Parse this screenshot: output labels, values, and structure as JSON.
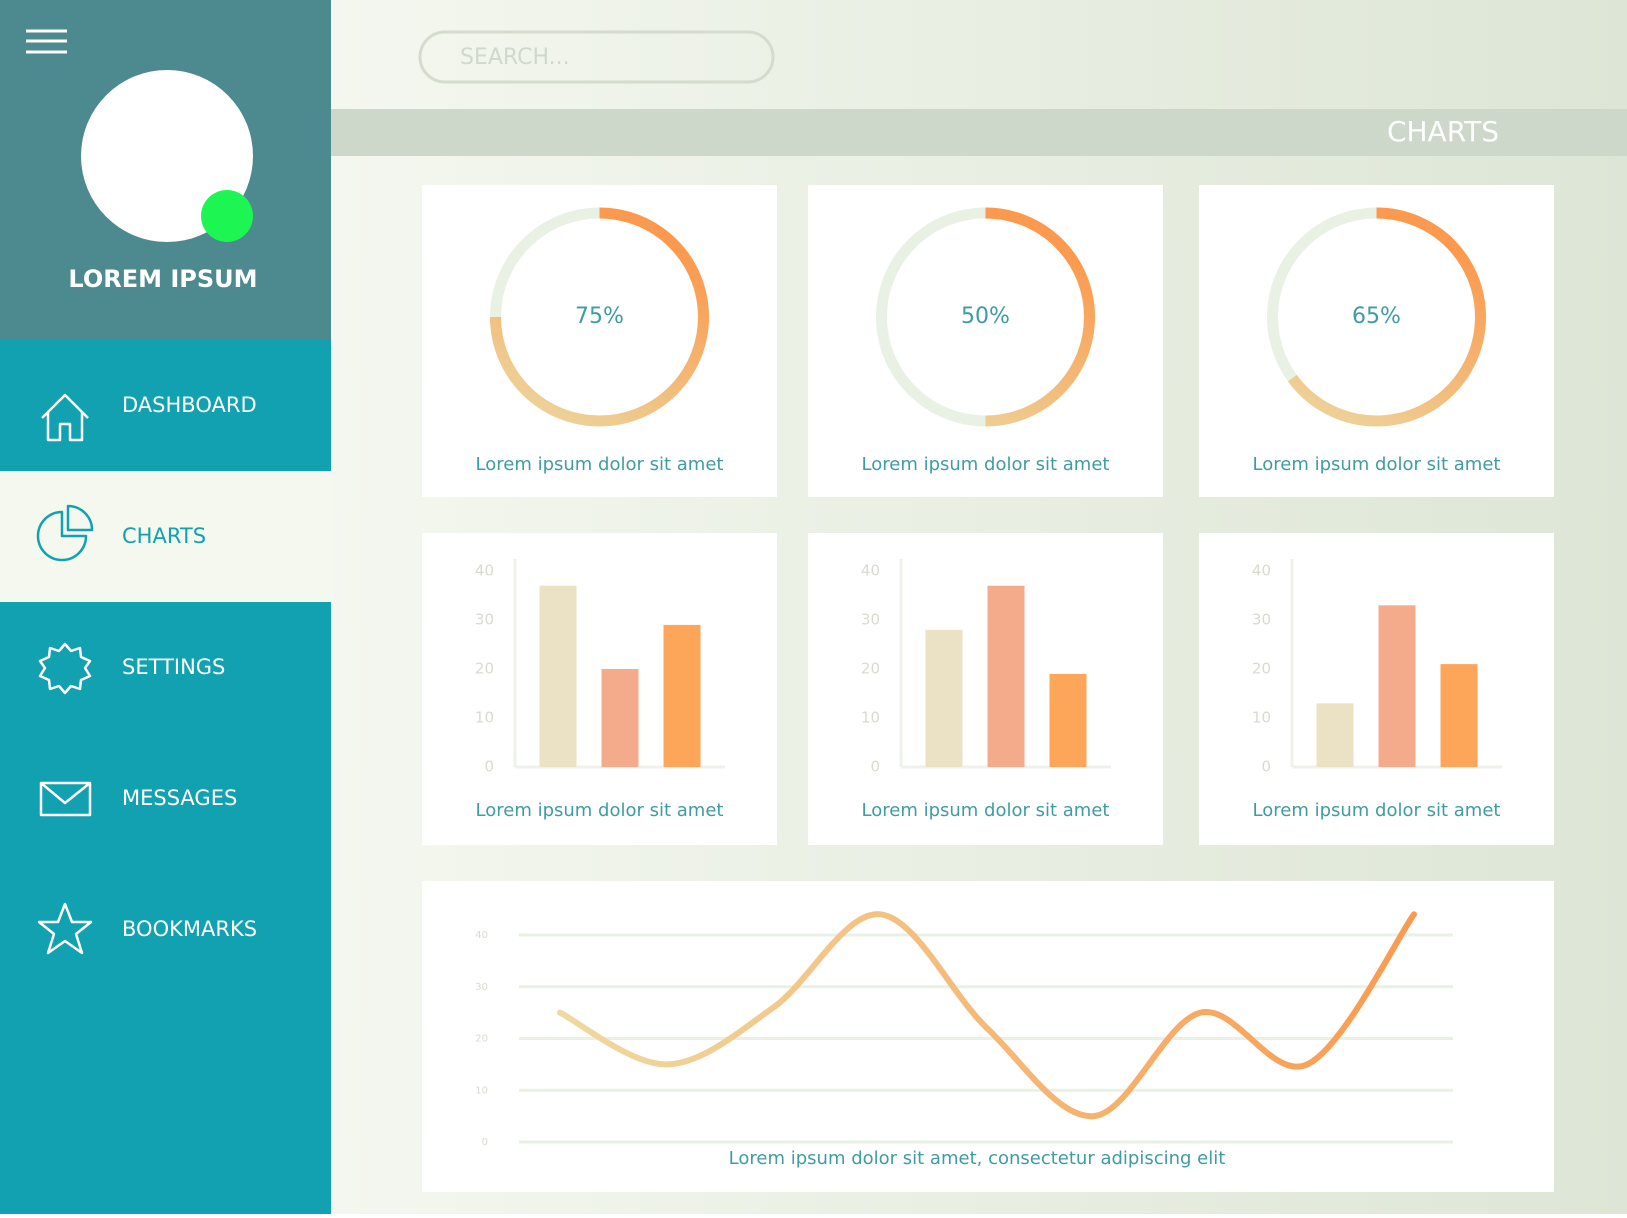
{
  "sidebar": {
    "profile_name": "LOREM IPSUM",
    "menu": [
      "DASHBOARD",
      "CHARTS",
      "SETTINGS",
      "MESSAGES",
      "BOOKMARKS"
    ],
    "active": 1
  },
  "search": {
    "placeholder": "SEARCH..."
  },
  "header": {
    "title": "CHARTS"
  },
  "chart_data": [
    {
      "type": "pie",
      "values": [
        75
      ],
      "value_labels": [
        "75%"
      ],
      "caption": "Lorem ipsum dolor sit amet",
      "color": "#fb9a4e"
    },
    {
      "type": "pie",
      "values": [
        50
      ],
      "value_labels": [
        "50%"
      ],
      "caption": "Lorem ipsum dolor sit amet",
      "color": "#fb9a4e"
    },
    {
      "type": "pie",
      "values": [
        65
      ],
      "value_labels": [
        "65%"
      ],
      "caption": "Lorem ipsum dolor sit amet",
      "color": "#fb9a4e"
    },
    {
      "type": "bar",
      "categories": [
        null,
        null,
        null
      ],
      "values": [
        37,
        20,
        29
      ],
      "colors": [
        "#ebe2c6",
        "#f4ab8c",
        "#fda65a"
      ],
      "ylim": [
        0,
        40
      ],
      "yticks": [
        0,
        10,
        20,
        30,
        40
      ],
      "caption": "Lorem ipsum dolor sit amet"
    },
    {
      "type": "bar",
      "categories": [
        null,
        null,
        null
      ],
      "values": [
        28,
        37,
        19
      ],
      "colors": [
        "#ebe2c6",
        "#f4ab8c",
        "#fda65a"
      ],
      "ylim": [
        0,
        40
      ],
      "yticks": [
        0,
        10,
        20,
        30,
        40
      ],
      "caption": "Lorem ipsum dolor sit amet"
    },
    {
      "type": "bar",
      "categories": [
        null,
        null,
        null
      ],
      "values": [
        13,
        33,
        21
      ],
      "colors": [
        "#ebe2c6",
        "#f4ab8c",
        "#fda65a"
      ],
      "ylim": [
        0,
        40
      ],
      "yticks": [
        0,
        10,
        20,
        30,
        40
      ],
      "caption": "Lorem ipsum dolor sit amet"
    },
    {
      "type": "line",
      "categories": [
        null,
        null,
        null,
        null,
        null,
        null,
        null,
        null,
        null
      ],
      "values": [
        25,
        15,
        26,
        44,
        22,
        5,
        25,
        15,
        44
      ],
      "ylim": [
        0,
        40
      ],
      "yticks": [
        0,
        10,
        20,
        30,
        40
      ],
      "grid": true,
      "color": "#fb9a4e",
      "caption": "Lorem ipsum dolor sit amet, consectetur adipiscing elit"
    }
  ]
}
